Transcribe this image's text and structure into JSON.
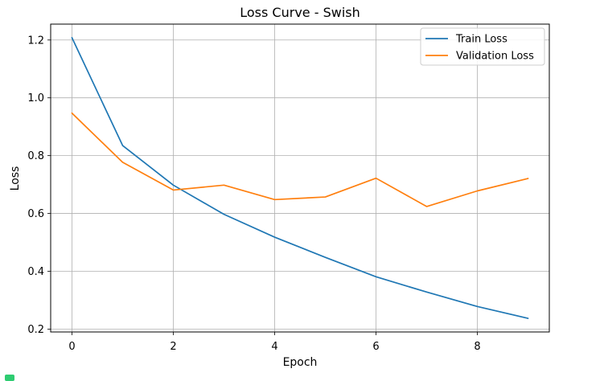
{
  "chart_data": {
    "type": "line",
    "title": "Loss Curve - Swish",
    "xlabel": "Epoch",
    "ylabel": "Loss",
    "x": [
      0,
      1,
      2,
      3,
      4,
      5,
      6,
      7,
      8,
      9
    ],
    "xlim": [
      -0.42,
      9.42
    ],
    "ylim": [
      0.19,
      1.255
    ],
    "xticks": [
      0,
      2,
      4,
      6,
      8
    ],
    "yticks": [
      0.2,
      0.4,
      0.6,
      0.8,
      1.0,
      1.2
    ],
    "xtick_labels": [
      "0",
      "2",
      "4",
      "6",
      "8"
    ],
    "ytick_labels": [
      "0.2",
      "0.4",
      "0.6",
      "0.8",
      "1.0",
      "1.2"
    ],
    "grid": true,
    "legend_position": "top-right",
    "series": [
      {
        "name": "Train Loss",
        "color": "#1f77b4",
        "values": [
          1.208,
          0.835,
          0.698,
          0.597,
          0.518,
          0.448,
          0.381,
          0.328,
          0.278,
          0.237
        ]
      },
      {
        "name": "Validation Loss",
        "color": "#ff7f0e",
        "values": [
          0.947,
          0.777,
          0.681,
          0.698,
          0.648,
          0.657,
          0.722,
          0.624,
          0.678,
          0.721
        ]
      }
    ]
  }
}
